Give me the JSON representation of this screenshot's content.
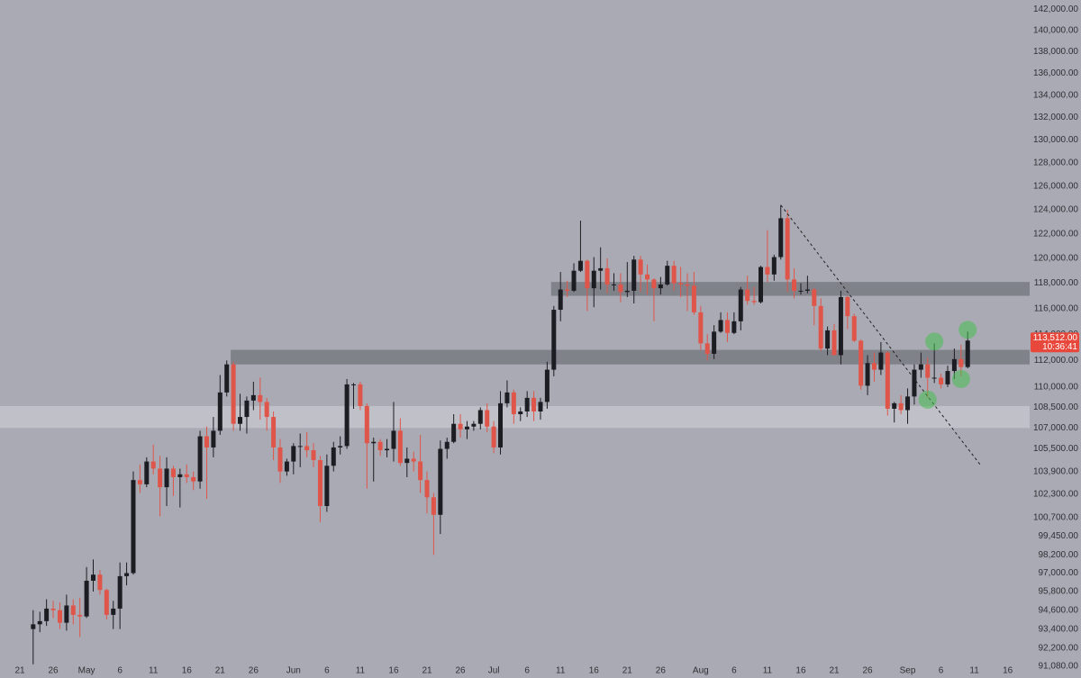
{
  "chart_data": {
    "type": "candlestick",
    "log": true,
    "up_color": "#1c1d22",
    "down_color": "#e0554a",
    "ylim": [
      90360,
      142900
    ],
    "yticks": [
      {
        "value": 142000,
        "label": "142,000.00"
      },
      {
        "value": 140000,
        "label": "140,000.00"
      },
      {
        "value": 138000,
        "label": "138,000.00"
      },
      {
        "value": 136000,
        "label": "136,000.00"
      },
      {
        "value": 134000,
        "label": "134,000.00"
      },
      {
        "value": 132000,
        "label": "132,000.00"
      },
      {
        "value": 130000,
        "label": "130,000.00"
      },
      {
        "value": 128000,
        "label": "128,000.00"
      },
      {
        "value": 126000,
        "label": "126,000.00"
      },
      {
        "value": 124000,
        "label": "124,000.00"
      },
      {
        "value": 122000,
        "label": "122,000.00"
      },
      {
        "value": 120000,
        "label": "120,000.00"
      },
      {
        "value": 118000,
        "label": "118,000.00"
      },
      {
        "value": 116000,
        "label": "116,000.00"
      },
      {
        "value": 114000,
        "label": "114,000.00"
      },
      {
        "value": 112000,
        "label": "112,000.00"
      },
      {
        "value": 110000,
        "label": "110,000.00"
      },
      {
        "value": 108500,
        "label": "108,500.00"
      },
      {
        "value": 107000,
        "label": "107,000.00"
      },
      {
        "value": 105500,
        "label": "105,500.00"
      },
      {
        "value": 103900,
        "label": "103,900.00"
      },
      {
        "value": 102300,
        "label": "102,300.00"
      },
      {
        "value": 100700,
        "label": "100,700.00"
      },
      {
        "value": 99450,
        "label": "99,450.00"
      },
      {
        "value": 98200,
        "label": "98,200.00"
      },
      {
        "value": 97000,
        "label": "97,000.00"
      },
      {
        "value": 95800,
        "label": "95,800.00"
      },
      {
        "value": 94600,
        "label": "94,600.00"
      },
      {
        "value": 93400,
        "label": "93,400.00"
      },
      {
        "value": 92200,
        "label": "92,200.00"
      },
      {
        "value": 91080,
        "label": "91,080.00"
      }
    ],
    "categories": [
      null,
      null,
      null,
      "21",
      null,
      null,
      null,
      null,
      "26",
      null,
      null,
      null,
      null,
      "May",
      null,
      null,
      null,
      null,
      "6",
      null,
      null,
      null,
      null,
      "11",
      null,
      null,
      null,
      null,
      "16",
      null,
      null,
      null,
      null,
      "21",
      null,
      null,
      null,
      null,
      "26",
      null,
      null,
      null,
      null,
      null,
      "Jun",
      null,
      null,
      null,
      null,
      "6",
      null,
      null,
      null,
      null,
      "11",
      null,
      null,
      null,
      null,
      "16",
      null,
      null,
      null,
      null,
      "21",
      null,
      null,
      null,
      null,
      "26",
      null,
      null,
      null,
      null,
      "Jul",
      null,
      null,
      null,
      null,
      "6",
      null,
      null,
      null,
      null,
      "11",
      null,
      null,
      null,
      null,
      "16",
      null,
      null,
      null,
      null,
      "21",
      null,
      null,
      null,
      null,
      "26",
      null,
      null,
      null,
      null,
      null,
      "Aug",
      null,
      null,
      null,
      null,
      "6",
      null,
      null,
      null,
      null,
      "11",
      null,
      null,
      null,
      null,
      "16",
      null,
      null,
      null,
      null,
      "21",
      null,
      null,
      null,
      null,
      "26",
      null,
      null,
      null,
      null,
      null,
      "Sep",
      null,
      null,
      null,
      null,
      "6",
      null,
      null,
      null,
      null,
      "11",
      null,
      null,
      null,
      null,
      "16",
      null,
      null
    ],
    "open": [
      null,
      null,
      null,
      null,
      null,
      93400,
      93700,
      93900,
      94700,
      94600,
      93800,
      94900,
      94300,
      94200,
      96500,
      96900,
      95900,
      94300,
      94700,
      96800,
      97000,
      103300,
      103000,
      104600,
      104100,
      102800,
      104100,
      103500,
      103700,
      103500,
      103200,
      106400,
      105600,
      106800,
      109600,
      111700,
      107300,
      107800,
      109000,
      109400,
      108900,
      107800,
      105600,
      103900,
      104600,
      105700,
      105700,
      105400,
      104700,
      101500,
      104300,
      105600,
      105700,
      110200,
      110200,
      108600,
      105900,
      106000,
      105400,
      105500,
      106800,
      104500,
      104800,
      104600,
      103300,
      102100,
      100900,
      105500,
      106000,
      107300,
      106900,
      107100,
      107300,
      108300,
      107100,
      105600,
      108800,
      109600,
      108000,
      108200,
      109200,
      108200,
      108900,
      111300,
      115900,
      117500,
      117400,
      119000,
      119800,
      117600,
      119000,
      119200,
      117900,
      117900,
      117300,
      117400,
      119900,
      118700,
      118300,
      117600,
      117900,
      119400,
      118000,
      117900,
      117800,
      115700,
      113300,
      112500,
      114200,
      115100,
      114100,
      115000,
      117500,
      116600,
      116500,
      119300,
      118700,
      120100,
      123300,
      118300,
      117400,
      117400,
      117500,
      116200,
      112900,
      114300,
      112400,
      116900,
      115400,
      113500,
      110100,
      111800,
      111300,
      112600,
      108400,
      108800,
      108300,
      109300,
      111300,
      111700,
      110700,
      110700,
      110200,
      111200,
      112100,
      111500,
      null,
      null,
      null,
      null,
      null,
      null,
      null,
      null
    ],
    "high": [
      null,
      null,
      null,
      null,
      null,
      94600,
      94500,
      95300,
      95200,
      95100,
      95600,
      95300,
      95400,
      97400,
      97900,
      97200,
      96000,
      95200,
      97700,
      97700,
      103900,
      104400,
      104900,
      105800,
      105000,
      104900,
      104300,
      104100,
      104400,
      103900,
      106800,
      107100,
      107800,
      110900,
      112000,
      111900,
      109500,
      109300,
      110400,
      110700,
      109200,
      108200,
      106200,
      104800,
      105900,
      106600,
      106700,
      105900,
      105000,
      105100,
      106000,
      106400,
      110600,
      110300,
      110400,
      108800,
      106300,
      106200,
      106200,
      108900,
      107700,
      105600,
      105300,
      106500,
      103900,
      102400,
      106100,
      106300,
      108000,
      108000,
      107500,
      107500,
      108500,
      108800,
      107500,
      109700,
      110500,
      109800,
      108500,
      109700,
      109700,
      109200,
      111900,
      116200,
      118900,
      118200,
      119600,
      123100,
      119900,
      120100,
      120900,
      120000,
      118800,
      118800,
      119700,
      120200,
      120200,
      119500,
      118400,
      118500,
      119800,
      119800,
      119300,
      118800,
      118900,
      116200,
      114000,
      114700,
      115700,
      115700,
      115700,
      117700,
      118600,
      117700,
      119400,
      122300,
      120300,
      124400,
      124000,
      119200,
      118000,
      118600,
      117600,
      116800,
      114600,
      114800,
      117400,
      117000,
      115600,
      113600,
      112400,
      112600,
      113400,
      112700,
      108900,
      109400,
      109900,
      111700,
      112600,
      112200,
      113300,
      111000,
      111600,
      112900,
      113200,
      114200,
      null,
      null,
      null,
      null,
      null,
      null,
      null,
      null
    ],
    "low": [
      null,
      null,
      null,
      null,
      null,
      91200,
      93200,
      93600,
      94100,
      93400,
      93300,
      93700,
      92900,
      94100,
      95800,
      95600,
      94000,
      93400,
      93400,
      96200,
      96900,
      102400,
      102800,
      103700,
      100800,
      101500,
      102200,
      101400,
      103100,
      102600,
      102700,
      102000,
      104900,
      106500,
      109300,
      106800,
      106800,
      106600,
      108300,
      107600,
      106800,
      104700,
      103100,
      103600,
      103700,
      104200,
      104900,
      104200,
      100400,
      101100,
      103900,
      105100,
      105500,
      108400,
      108300,
      102700,
      103200,
      105000,
      104900,
      104600,
      104300,
      103500,
      103900,
      102400,
      101000,
      98200,
      99600,
      104800,
      105900,
      106300,
      106200,
      106800,
      106900,
      106700,
      105200,
      105100,
      108500,
      107300,
      107500,
      107800,
      107500,
      107600,
      108400,
      110800,
      115000,
      116900,
      117300,
      118900,
      115800,
      116100,
      117500,
      117200,
      117400,
      116500,
      116900,
      116400,
      117300,
      117100,
      115000,
      117100,
      117800,
      117400,
      116900,
      115800,
      115500,
      112800,
      112000,
      112100,
      114100,
      113400,
      114000,
      114300,
      116300,
      116300,
      116400,
      118100,
      118200,
      119900,
      117300,
      116800,
      117100,
      117200,
      114700,
      112700,
      112400,
      112400,
      111700,
      114400,
      113400,
      109800,
      109400,
      110400,
      110900,
      107900,
      107400,
      108000,
      107300,
      108700,
      110700,
      109200,
      110300,
      109900,
      110000,
      110600,
      110800,
      111400,
      null,
      null,
      null,
      null,
      null,
      null,
      null,
      null
    ],
    "close": [
      null,
      null,
      null,
      null,
      null,
      93700,
      93900,
      94700,
      94600,
      93800,
      94900,
      94300,
      94200,
      96500,
      96900,
      95900,
      94300,
      94700,
      96800,
      97000,
      103300,
      103000,
      104600,
      104100,
      102800,
      104100,
      103500,
      103700,
      103500,
      103200,
      106400,
      105600,
      106800,
      109600,
      111700,
      107300,
      107800,
      109000,
      109400,
      108900,
      107800,
      105600,
      103900,
      104600,
      105700,
      105700,
      105400,
      104700,
      101500,
      104300,
      105600,
      105700,
      110200,
      110200,
      108600,
      105900,
      106000,
      105400,
      105500,
      106800,
      104500,
      104800,
      104600,
      103300,
      102100,
      100900,
      105500,
      106000,
      107300,
      106900,
      107100,
      107300,
      108300,
      107100,
      105600,
      108800,
      109600,
      108000,
      108200,
      109200,
      108200,
      108900,
      111300,
      115900,
      117500,
      117400,
      119000,
      119800,
      117600,
      119000,
      119200,
      117900,
      117900,
      117300,
      117400,
      119900,
      118700,
      118300,
      117600,
      117900,
      119400,
      118000,
      117900,
      117800,
      115700,
      113300,
      112500,
      114200,
      115100,
      114100,
      115000,
      117500,
      116600,
      116500,
      119300,
      118700,
      120100,
      123300,
      118300,
      117400,
      117400,
      117500,
      116200,
      112900,
      114300,
      112400,
      116900,
      115400,
      113500,
      110100,
      111800,
      111300,
      112600,
      108400,
      108800,
      108300,
      109300,
      111300,
      111700,
      110700,
      110700,
      110200,
      111200,
      112100,
      111500,
      113512,
      null,
      null,
      null,
      null,
      null,
      null,
      null,
      null
    ],
    "last_label": {
      "value": 113512,
      "label": "113,512.00"
    },
    "countdown": "10:36:41",
    "zones": [
      {
        "low": 117000,
        "high": 118100
      },
      {
        "low": 111700,
        "high": 112800
      },
      {
        "low": 107000,
        "high": 108600
      }
    ],
    "trendline": {
      "start": 124400,
      "end": 104300
    }
  }
}
